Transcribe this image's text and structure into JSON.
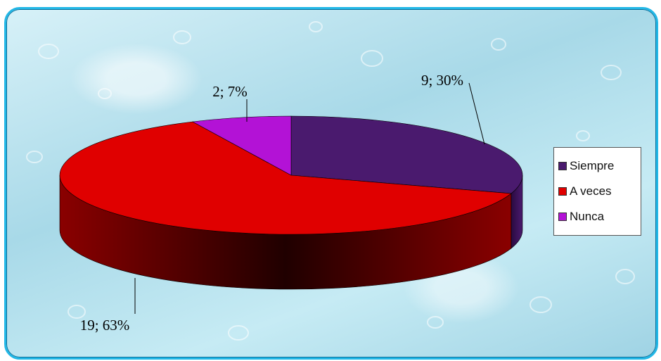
{
  "chart_data": {
    "type": "pie",
    "style": "3d",
    "slices": [
      {
        "name": "Siempre",
        "count": 9,
        "percent": 30,
        "label": "9; 30%",
        "color": "#4a1a6e"
      },
      {
        "name": "A veces",
        "count": 19,
        "percent": 63,
        "label": "19; 63%",
        "color": "#e00000"
      },
      {
        "name": "Nunca",
        "count": 2,
        "percent": 7,
        "label": "2; 7%",
        "color": "#b312d6"
      }
    ],
    "legend_position": "right",
    "title": ""
  }
}
